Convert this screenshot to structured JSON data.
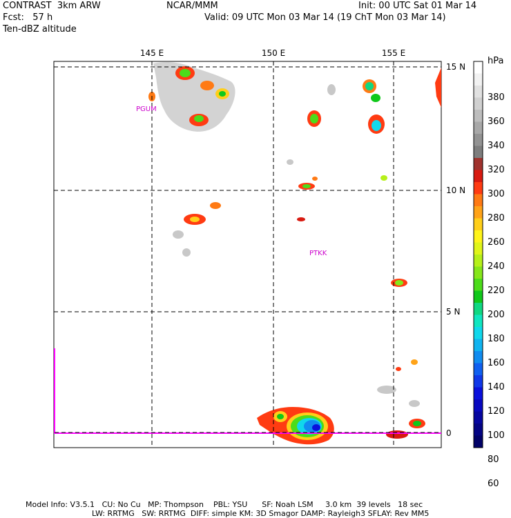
{
  "header": {
    "model": "CONTRAST  3km ARW",
    "fcst": "Fcst:   57 h",
    "field": "Ten-dBZ altitude",
    "org": "NCAR/MMM",
    "init": "Init: 00 UTC Sat 01 Mar 14",
    "valid": "Valid: 09 UTC Mon 03 Mar 14 (19 ChT Mon 03 Mar 14)"
  },
  "map": {
    "lon_labels": [
      "145 E",
      "150 E",
      "155 E"
    ],
    "lat_labels": [
      "15 N",
      "10 N",
      "5 N",
      "0"
    ],
    "stations": [
      "PGUM",
      "PTKK"
    ],
    "colors": {
      "grid": "#000000",
      "equator": "#ff00ff",
      "station": "#cc00cc"
    }
  },
  "colorbar": {
    "unit": "hPa",
    "levels": [
      "380",
      "360",
      "340",
      "320",
      "300",
      "280",
      "260",
      "240",
      "220",
      "200",
      "180",
      "160",
      "140",
      "120",
      "100",
      "80",
      "60"
    ],
    "colors": [
      "#ffffff",
      "#f2f2f2",
      "#e1e1e1",
      "#d0d0d0",
      "#bdbdbd",
      "#a8a8a8",
      "#939393",
      "#7e7e7e",
      "#a0322d",
      "#d81a10",
      "#ff3b12",
      "#ff7a14",
      "#ffa318",
      "#ffcf1a",
      "#fff41a",
      "#e0f51a",
      "#b6f01a",
      "#86e61a",
      "#4cdc1a",
      "#10c81a",
      "#10d882",
      "#10e6c0",
      "#10d8ec",
      "#10b4f0",
      "#108cf0",
      "#1060f0",
      "#1038e8",
      "#0a10dc",
      "#0808c0",
      "#0606a0",
      "#040484",
      "#020268"
    ]
  },
  "footer": {
    "line1": [
      "Model Info: V3.5.1",
      "CU: No Cu",
      "MP: Thompson",
      "PBL: YSU",
      "SF: Noah LSM",
      "3.0 km",
      "39 levels",
      "18 sec"
    ],
    "line2": [
      "LW: RRTMG",
      "SW: RRTMG",
      "DIFF: simple",
      "KM: 3D Smagor",
      "DAMP: Rayleigh3",
      "SFLAY: Rev MM5"
    ]
  }
}
